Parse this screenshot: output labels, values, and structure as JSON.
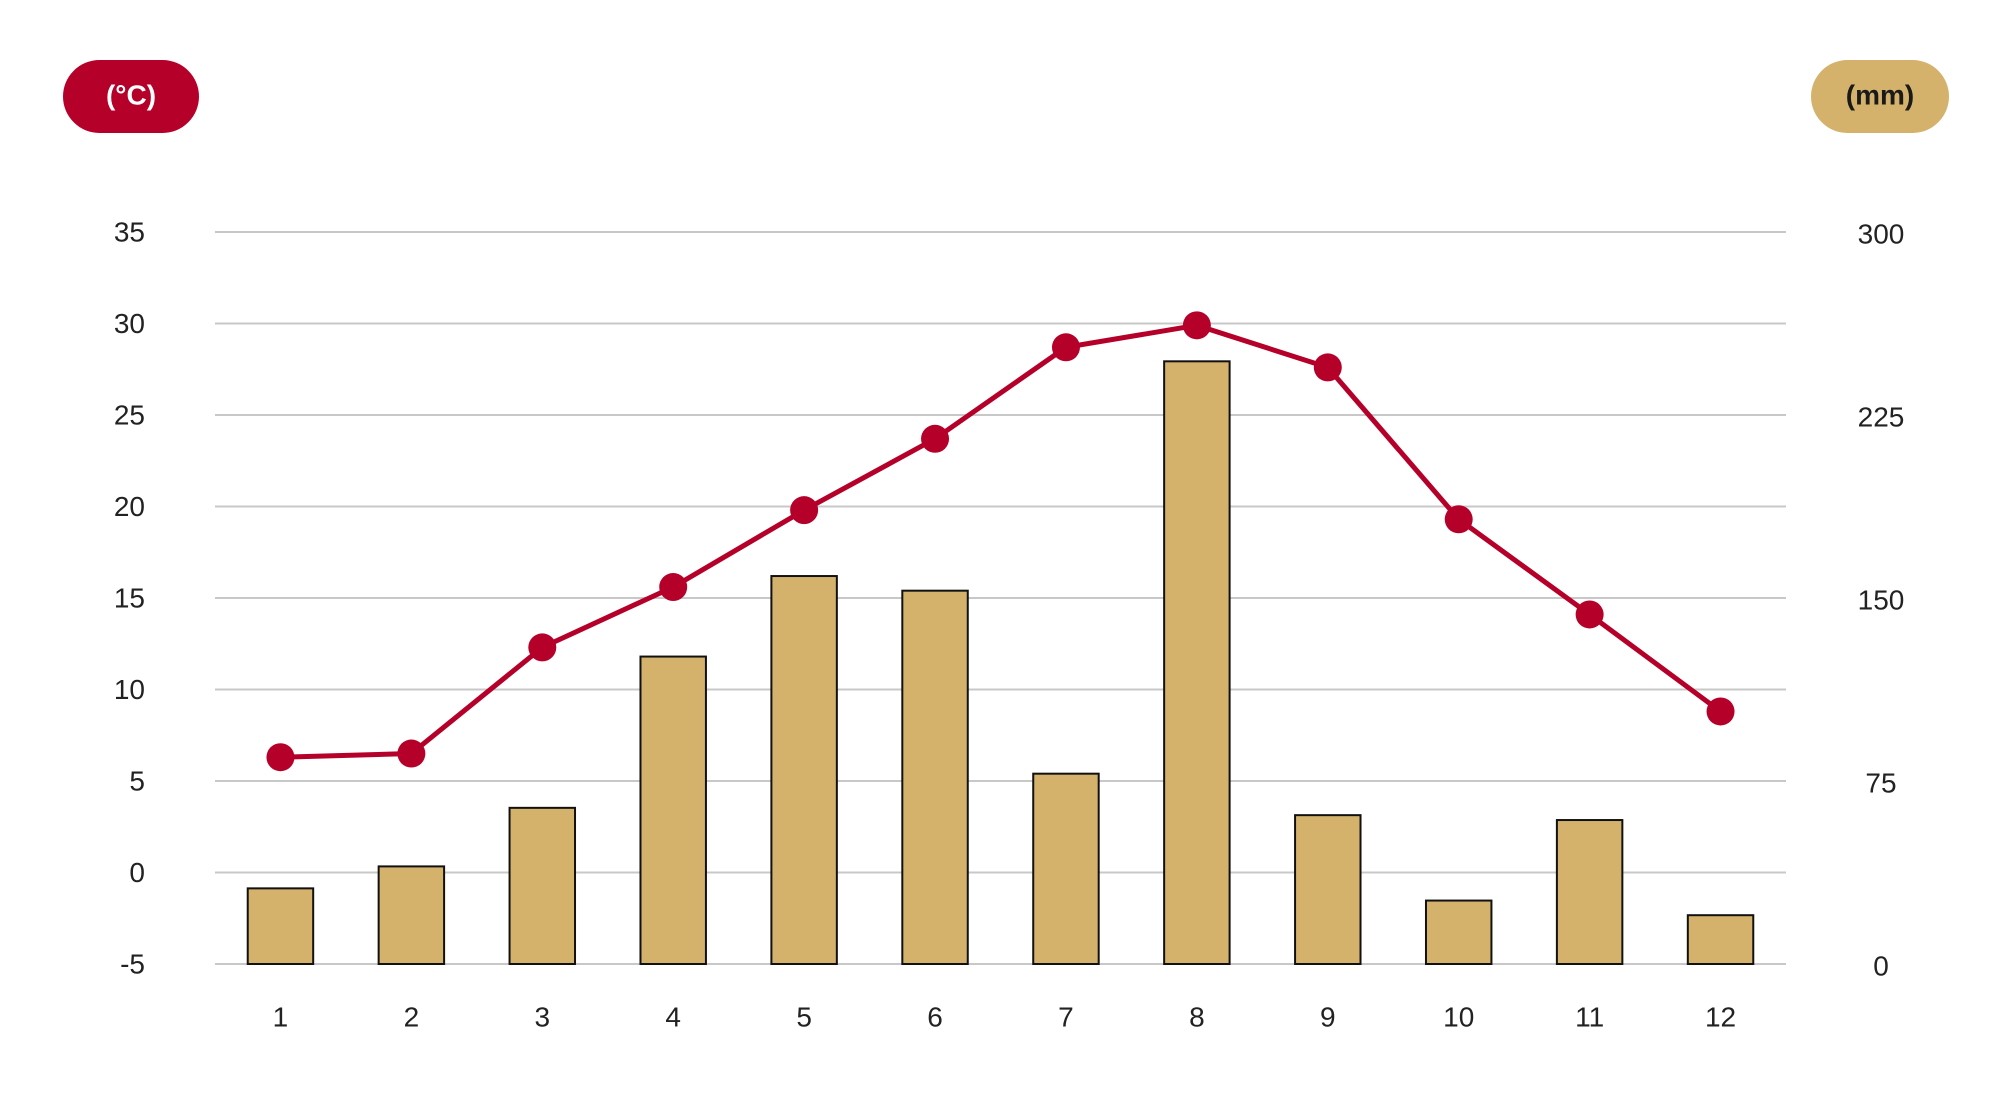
{
  "chart_data": {
    "type": "bar",
    "y_label": "(°C)",
    "y2_label": "(mm)",
    "categories": [
      "1",
      "2",
      "3",
      "4",
      "5",
      "6",
      "7",
      "8",
      "9",
      "10",
      "11",
      "12"
    ],
    "series": [
      {
        "type": "bar",
        "axis": "y2",
        "color": "#d4b26c",
        "values": [
          31,
          40,
          64,
          126,
          159,
          153,
          78,
          247,
          61,
          26,
          59,
          20
        ]
      },
      {
        "type": "line",
        "color": "#b5002a",
        "values": [
          6.3,
          6.5,
          12.3,
          15.6,
          19.8,
          23.7,
          28.7,
          29.9,
          27.6,
          19.3,
          14.1,
          8.8
        ]
      }
    ],
    "ylim": [
      -5,
      35
    ],
    "yticks": [
      -5,
      0,
      5,
      10,
      15,
      20,
      25,
      30,
      35
    ],
    "y2lim": [
      0,
      300
    ],
    "y2ticks": [
      0,
      75,
      150,
      225,
      300
    ],
    "grid": true
  }
}
